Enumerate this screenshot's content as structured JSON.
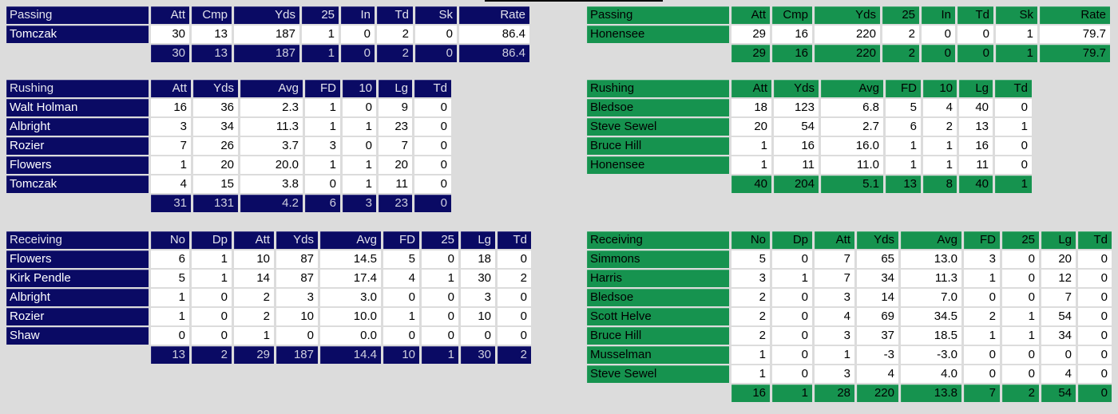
{
  "page": {
    "background": "#dcdcdc",
    "top_rule_color": "#000000"
  },
  "teams": {
    "home": {
      "accent": "#0a0a64",
      "label_text": "#ffffff",
      "header_text": "#e2e2ec",
      "total_text": "#cfcfdf",
      "tables": {
        "passing": {
          "title": "Passing",
          "columns": [
            "Att",
            "Cmp",
            "Yds",
            "25",
            "In",
            "Td",
            "Sk",
            "Rate"
          ],
          "rows": [
            {
              "name": "Tomczak",
              "values": [
                "30",
                "13",
                "187",
                "1",
                "0",
                "2",
                "0",
                "86.4"
              ]
            }
          ],
          "totals": [
            "30",
            "13",
            "187",
            "1",
            "0",
            "2",
            "0",
            "86.4"
          ]
        },
        "rushing": {
          "title": "Rushing",
          "columns": [
            "Att",
            "Yds",
            "Avg",
            "FD",
            "10",
            "Lg",
            "Td"
          ],
          "rows": [
            {
              "name": "Walt Holman",
              "values": [
                "16",
                "36",
                "2.3",
                "1",
                "0",
                "9",
                "0"
              ]
            },
            {
              "name": "Albright",
              "values": [
                "3",
                "34",
                "11.3",
                "1",
                "1",
                "23",
                "0"
              ]
            },
            {
              "name": "Rozier",
              "values": [
                "7",
                "26",
                "3.7",
                "3",
                "0",
                "7",
                "0"
              ]
            },
            {
              "name": "Flowers",
              "values": [
                "1",
                "20",
                "20.0",
                "1",
                "1",
                "20",
                "0"
              ]
            },
            {
              "name": "Tomczak",
              "values": [
                "4",
                "15",
                "3.8",
                "0",
                "1",
                "11",
                "0"
              ]
            }
          ],
          "totals": [
            "31",
            "131",
            "4.2",
            "6",
            "3",
            "23",
            "0"
          ]
        },
        "receiving": {
          "title": "Receiving",
          "columns": [
            "No",
            "Dp",
            "Att",
            "Yds",
            "Avg",
            "FD",
            "25",
            "Lg",
            "Td"
          ],
          "rows": [
            {
              "name": "Flowers",
              "values": [
                "6",
                "1",
                "10",
                "87",
                "14.5",
                "5",
                "0",
                "18",
                "0"
              ]
            },
            {
              "name": "Kirk Pendle",
              "values": [
                "5",
                "1",
                "14",
                "87",
                "17.4",
                "4",
                "1",
                "30",
                "2"
              ]
            },
            {
              "name": "Albright",
              "values": [
                "1",
                "0",
                "2",
                "3",
                "3.0",
                "0",
                "0",
                "3",
                "0"
              ]
            },
            {
              "name": "Rozier",
              "values": [
                "1",
                "0",
                "2",
                "10",
                "10.0",
                "1",
                "0",
                "10",
                "0"
              ]
            },
            {
              "name": "Shaw",
              "values": [
                "0",
                "0",
                "1",
                "0",
                "0.0",
                "0",
                "0",
                "0",
                "0"
              ]
            }
          ],
          "totals": [
            "13",
            "2",
            "29",
            "187",
            "14.4",
            "10",
            "1",
            "30",
            "2"
          ]
        }
      }
    },
    "away": {
      "accent": "#16934f",
      "label_text": "#000000",
      "header_text": "#000000",
      "total_text": "#000000",
      "tables": {
        "passing": {
          "title": "Passing",
          "columns": [
            "Att",
            "Cmp",
            "Yds",
            "25",
            "In",
            "Td",
            "Sk",
            "Rate"
          ],
          "rows": [
            {
              "name": "Honensee",
              "values": [
                "29",
                "16",
                "220",
                "2",
                "0",
                "0",
                "1",
                "79.7"
              ]
            }
          ],
          "totals": [
            "29",
            "16",
            "220",
            "2",
            "0",
            "0",
            "1",
            "79.7"
          ]
        },
        "rushing": {
          "title": "Rushing",
          "columns": [
            "Att",
            "Yds",
            "Avg",
            "FD",
            "10",
            "Lg",
            "Td"
          ],
          "rows": [
            {
              "name": "Bledsoe",
              "values": [
                "18",
                "123",
                "6.8",
                "5",
                "4",
                "40",
                "0"
              ]
            },
            {
              "name": "Steve Sewel",
              "values": [
                "20",
                "54",
                "2.7",
                "6",
                "2",
                "13",
                "1"
              ]
            },
            {
              "name": "Bruce Hill",
              "values": [
                "1",
                "16",
                "16.0",
                "1",
                "1",
                "16",
                "0"
              ]
            },
            {
              "name": "Honensee",
              "values": [
                "1",
                "11",
                "11.0",
                "1",
                "1",
                "11",
                "0"
              ]
            }
          ],
          "totals": [
            "40",
            "204",
            "5.1",
            "13",
            "8",
            "40",
            "1"
          ]
        },
        "receiving": {
          "title": "Receiving",
          "columns": [
            "No",
            "Dp",
            "Att",
            "Yds",
            "Avg",
            "FD",
            "25",
            "Lg",
            "Td"
          ],
          "rows": [
            {
              "name": "Simmons",
              "values": [
                "5",
                "0",
                "7",
                "65",
                "13.0",
                "3",
                "0",
                "20",
                "0"
              ]
            },
            {
              "name": "Harris",
              "values": [
                "3",
                "1",
                "7",
                "34",
                "11.3",
                "1",
                "0",
                "12",
                "0"
              ]
            },
            {
              "name": "Bledsoe",
              "values": [
                "2",
                "0",
                "3",
                "14",
                "7.0",
                "0",
                "0",
                "7",
                "0"
              ]
            },
            {
              "name": "Scott Helve",
              "values": [
                "2",
                "0",
                "4",
                "69",
                "34.5",
                "2",
                "1",
                "54",
                "0"
              ]
            },
            {
              "name": "Bruce Hill",
              "values": [
                "2",
                "0",
                "3",
                "37",
                "18.5",
                "1",
                "1",
                "34",
                "0"
              ]
            },
            {
              "name": "Musselman",
              "values": [
                "1",
                "0",
                "1",
                "-3",
                "-3.0",
                "0",
                "0",
                "0",
                "0"
              ]
            },
            {
              "name": "Steve Sewel",
              "values": [
                "1",
                "0",
                "3",
                "4",
                "4.0",
                "0",
                "0",
                "4",
                "0"
              ]
            }
          ],
          "totals": [
            "16",
            "1",
            "28",
            "220",
            "13.8",
            "7",
            "2",
            "54",
            "0"
          ]
        }
      }
    }
  }
}
